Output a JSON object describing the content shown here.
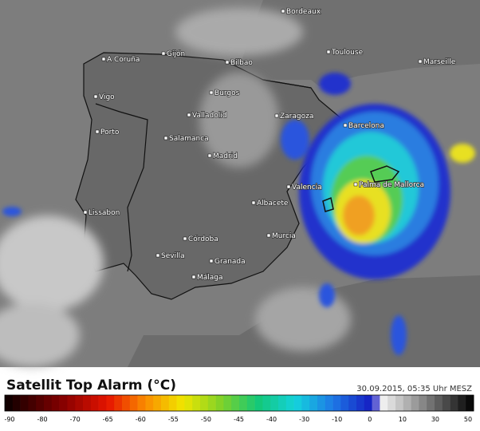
{
  "map": {
    "cities": [
      "Bordeaux",
      "Toulouse",
      "Marseille",
      "A Coruña",
      "Gijón",
      "Bilbao",
      "Vigo",
      "Burgos",
      "Valladolid",
      "Zaragoza",
      "Barcelona",
      "Porto",
      "Salamanca",
      "Madrid",
      "Palma de Mallorca",
      "Valencia",
      "Albacete",
      "Lissabon",
      "Murcia",
      "Córdoba",
      "Sevilla",
      "Granada",
      "Málaga"
    ]
  },
  "legend": {
    "title": "Satellit Top Alarm (°C)",
    "timestamp": "30.09.2015, 05:35 Uhr MESZ",
    "ticks": [
      -90,
      -80,
      -70,
      -65,
      -60,
      -55,
      -50,
      -45,
      -40,
      -30,
      -10,
      0,
      10,
      30,
      50
    ]
  }
}
